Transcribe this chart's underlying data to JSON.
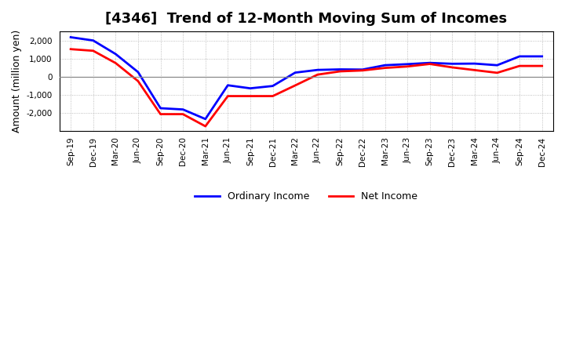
{
  "title": "[4346]  Trend of 12-Month Moving Sum of Incomes",
  "ylabel": "Amount (million yen)",
  "background_color": "#ffffff",
  "grid_color": "#999999",
  "x_labels": [
    "Sep-19",
    "Dec-19",
    "Mar-20",
    "Jun-20",
    "Sep-20",
    "Dec-20",
    "Mar-21",
    "Jun-21",
    "Sep-21",
    "Dec-21",
    "Mar-22",
    "Jun-22",
    "Sep-22",
    "Dec-22",
    "Mar-23",
    "Jun-23",
    "Sep-23",
    "Dec-23",
    "Mar-24",
    "Jun-24",
    "Sep-24",
    "Dec-24"
  ],
  "ordinary_income": [
    2180,
    2000,
    1250,
    250,
    -1750,
    -1820,
    -2350,
    -480,
    -650,
    -520,
    220,
    370,
    400,
    390,
    630,
    690,
    760,
    710,
    720,
    630,
    1120,
    1120
  ],
  "net_income": [
    1520,
    1430,
    750,
    -250,
    -2080,
    -2080,
    -2750,
    -1080,
    -1080,
    -1080,
    -490,
    110,
    290,
    340,
    480,
    560,
    700,
    510,
    360,
    210,
    590,
    590
  ],
  "ordinary_color": "#0000ff",
  "net_color": "#ff0000",
  "ylim": [
    -3000,
    2500
  ],
  "yticks": [
    -2000,
    -1000,
    0,
    1000,
    2000
  ],
  "line_width": 2.0,
  "title_fontsize": 13,
  "ylabel_fontsize": 9,
  "tick_fontsize": 7.5,
  "legend_fontsize": 9
}
